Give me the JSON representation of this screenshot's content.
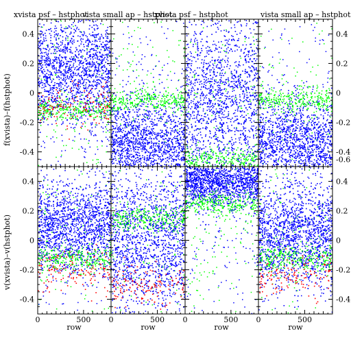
{
  "titles": [
    "xvista psf – hstphot",
    "vista small ap – hstphot",
    "xvista psf – hstphot",
    "vista small ap – hstphot"
  ],
  "colors": {
    "background": "#ffffff",
    "frame": "#000000",
    "blue": "#0000ff",
    "green": "#00ff00",
    "red": "#ff0000"
  },
  "chart_data": {
    "type": "scatter",
    "layout": "2x4 grid of panels, shared axes",
    "xlabel": "row",
    "ylabels": [
      "f(xvista)–f(hstphot)",
      "v(xvista)–v(hstphot)"
    ],
    "xlim": [
      0,
      800
    ],
    "ylim": [
      -0.5,
      0.5
    ],
    "xticks": [
      0,
      500
    ],
    "yticks": [
      -0.4,
      -0.2,
      0,
      0.2,
      0.4
    ],
    "right_ytick_labels": [
      "-0.6",
      "-0.4",
      "-0.2",
      "0",
      "0.2",
      "0.4"
    ],
    "series_colors": [
      "blue",
      "green",
      "red"
    ],
    "panels": [
      {
        "row": 0,
        "col": 0,
        "blue_center": 0.15,
        "blue_spread": 0.18,
        "green_band": -0.12,
        "red_band": -0.1
      },
      {
        "row": 0,
        "col": 1,
        "blue_center": -0.35,
        "blue_spread": 0.15,
        "green_band": -0.05,
        "red_band": null
      },
      {
        "row": 0,
        "col": 2,
        "blue_center": -0.05,
        "blue_spread": 0.3,
        "green_band": -0.45,
        "red_band": null
      },
      {
        "row": 0,
        "col": 3,
        "blue_center": -0.35,
        "blue_spread": 0.15,
        "green_band": -0.05,
        "red_band": null
      },
      {
        "row": 1,
        "col": 0,
        "blue_center": 0.1,
        "blue_spread": 0.15,
        "green_band": -0.12,
        "red_band": -0.2
      },
      {
        "row": 1,
        "col": 1,
        "blue_center": 0.0,
        "blue_spread": 0.25,
        "green_band": 0.15,
        "red_band": -0.3
      },
      {
        "row": 1,
        "col": 2,
        "blue_center": 0.4,
        "blue_spread": 0.08,
        "green_band": 0.25,
        "red_band": null
      },
      {
        "row": 1,
        "col": 3,
        "blue_center": 0.05,
        "blue_spread": 0.18,
        "green_band": -0.12,
        "red_band": -0.25
      }
    ]
  }
}
